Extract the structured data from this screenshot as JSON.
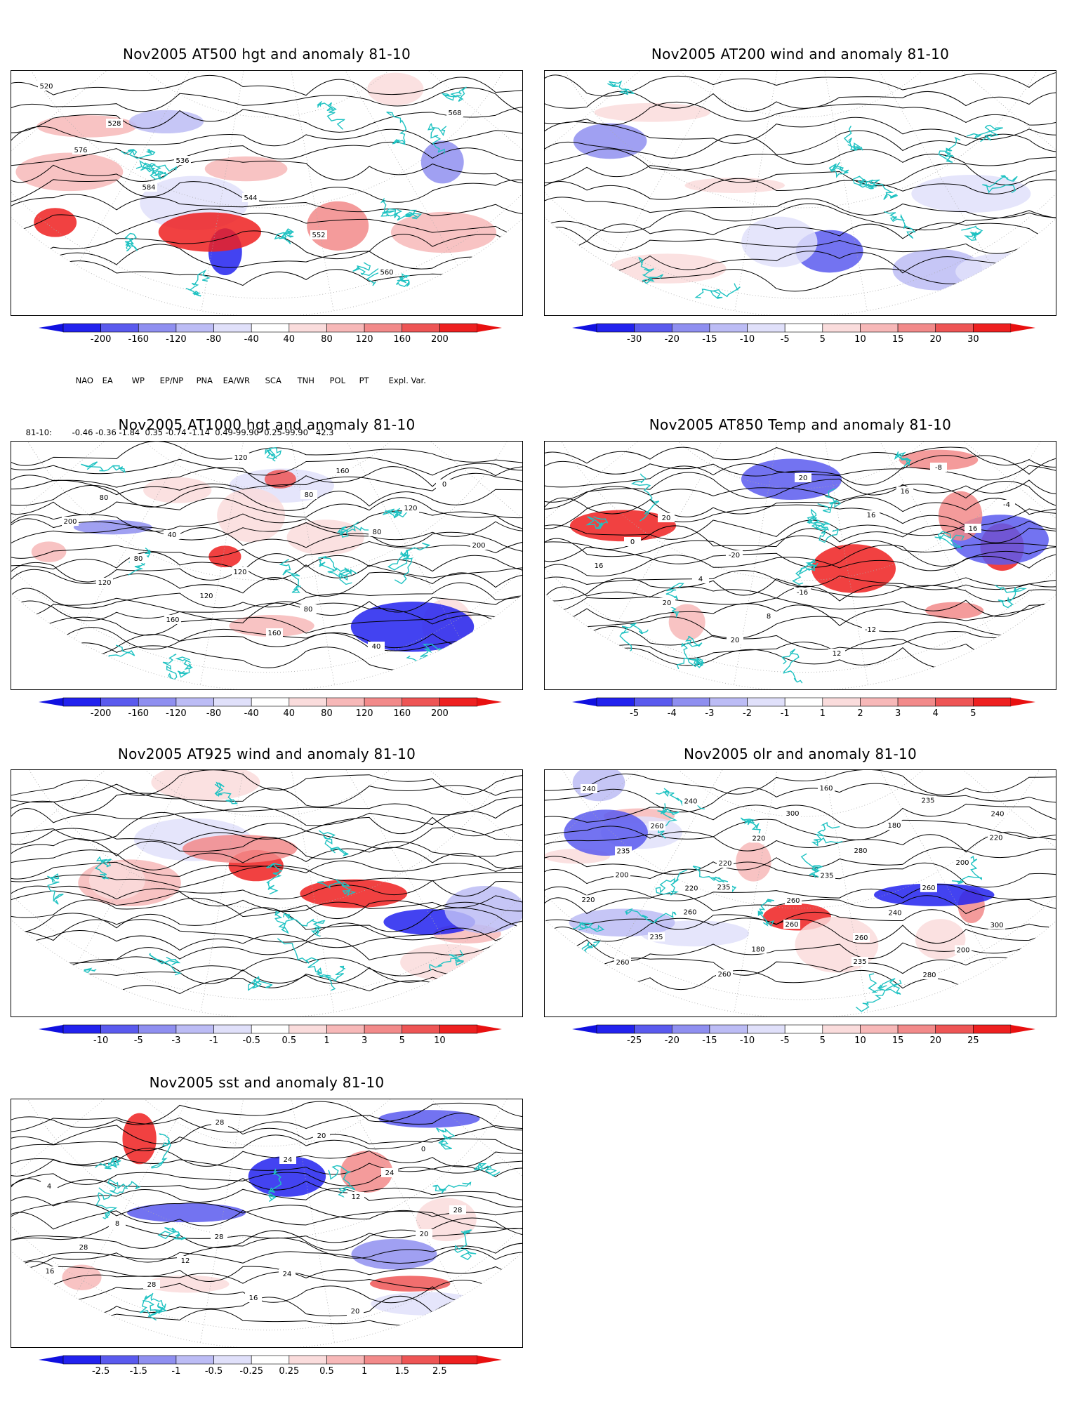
{
  "panels": [
    {
      "id": "at500",
      "title": "Nov2005 AT500 hgt and anomaly 81-10",
      "field": "geopotential height 500 hPa",
      "contour_labels": [
        "520",
        "528",
        "536",
        "544",
        "552",
        "560",
        "568",
        "576",
        "584"
      ],
      "colorbar": {
        "labels": [
          "-200",
          "-160",
          "-120",
          "-80",
          "-40",
          "40",
          "80",
          "120",
          "160",
          "200"
        ]
      }
    },
    {
      "id": "at200",
      "title": "Nov2005 AT200 wind and anomaly 81-10",
      "field": "wind 200 hPa streamlines",
      "contour_labels": [],
      "colorbar": {
        "labels": [
          "-30",
          "-20",
          "-15",
          "-10",
          "-5",
          "5",
          "10",
          "15",
          "20",
          "30"
        ]
      }
    },
    {
      "id": "at1000",
      "title": "Nov2005 AT1000 hgt and anomaly 81-10",
      "field": "geopotential height 1000 hPa",
      "contour_labels": [
        "80",
        "40",
        "120",
        "80",
        "40",
        "0",
        "200",
        "80",
        "120",
        "160",
        "160",
        "120",
        "200",
        "120",
        "160",
        "120",
        "80",
        "80"
      ],
      "colorbar": {
        "labels": [
          "-200",
          "-160",
          "-120",
          "-80",
          "-40",
          "40",
          "80",
          "120",
          "160",
          "200"
        ]
      }
    },
    {
      "id": "at850",
      "title": "Nov2005 AT850 Temp and anomaly 81-10",
      "field": "temperature 850 hPa",
      "contour_labels": [
        "20",
        "-20",
        "-16",
        "-12",
        "-8",
        "-4",
        "0",
        "4",
        "8",
        "12",
        "16",
        "16",
        "16",
        "20",
        "20",
        "20",
        "16"
      ],
      "colorbar": {
        "labels": [
          "-5",
          "-4",
          "-3",
          "-2",
          "-1",
          "1",
          "2",
          "3",
          "4",
          "5"
        ]
      }
    },
    {
      "id": "at925",
      "title": "Nov2005 AT925 wind and anomaly 81-10",
      "field": "wind 925 hPa streamlines",
      "contour_labels": [],
      "colorbar": {
        "labels": [
          "-10",
          "-5",
          "-3",
          "-1",
          "-0.5",
          "0.5",
          "1",
          "3",
          "5",
          "10"
        ]
      }
    },
    {
      "id": "olr",
      "title": "Nov2005 olr and anomaly 81-10",
      "field": "outgoing longwave radiation",
      "contour_labels": [
        "235",
        "260",
        "235",
        "235",
        "220",
        "200",
        "260",
        "180",
        "160",
        "180",
        "200",
        "220",
        "235",
        "260",
        "300",
        "280",
        "260",
        "300",
        "260",
        "240",
        "220",
        "235",
        "240",
        "200",
        "240",
        "260",
        "220",
        "260",
        "260",
        "280",
        "240",
        "235",
        "220"
      ],
      "colorbar": {
        "labels": [
          "-25",
          "-20",
          "-15",
          "-10",
          "-5",
          "5",
          "10",
          "15",
          "20",
          "25"
        ]
      }
    },
    {
      "id": "sst",
      "title": "Nov2005 sst and anomaly 81-10",
      "field": "sea surface temperature",
      "contour_labels": [
        "28",
        "24",
        "20",
        "0",
        "4",
        "8",
        "12",
        "16",
        "20",
        "24",
        "28",
        "28",
        "28",
        "28",
        "24",
        "12",
        "20",
        "16"
      ],
      "colorbar": {
        "labels": [
          "-2.5",
          "-1.5",
          "-1",
          "-0.5",
          "-0.25",
          "0.25",
          "0.5",
          "1",
          "1.5",
          "2.5"
        ]
      }
    }
  ],
  "teleconnections": {
    "row_label": "81-10:",
    "headers": [
      "NAO",
      "EA",
      "WP",
      "EP/NP",
      "PNA",
      "EA/WR",
      "SCA",
      "TNH",
      "POL",
      "PT",
      "Expl. Var."
    ],
    "values": "-0.46 -0.36 -1.84  0.35 -0.74 -1.14  0.49-99.90  0.25-99.90   42.3"
  },
  "colors": {
    "land_outline": "#1fc2c2",
    "contour": "#000000",
    "neg": [
      "#2222ee",
      "#5a5aee",
      "#8f8ff0",
      "#bcbcf5",
      "#e0e0fa"
    ],
    "pos": [
      "#fadcdc",
      "#f7b8b8",
      "#f28a8a",
      "#ee5555",
      "#ee2020"
    ]
  }
}
